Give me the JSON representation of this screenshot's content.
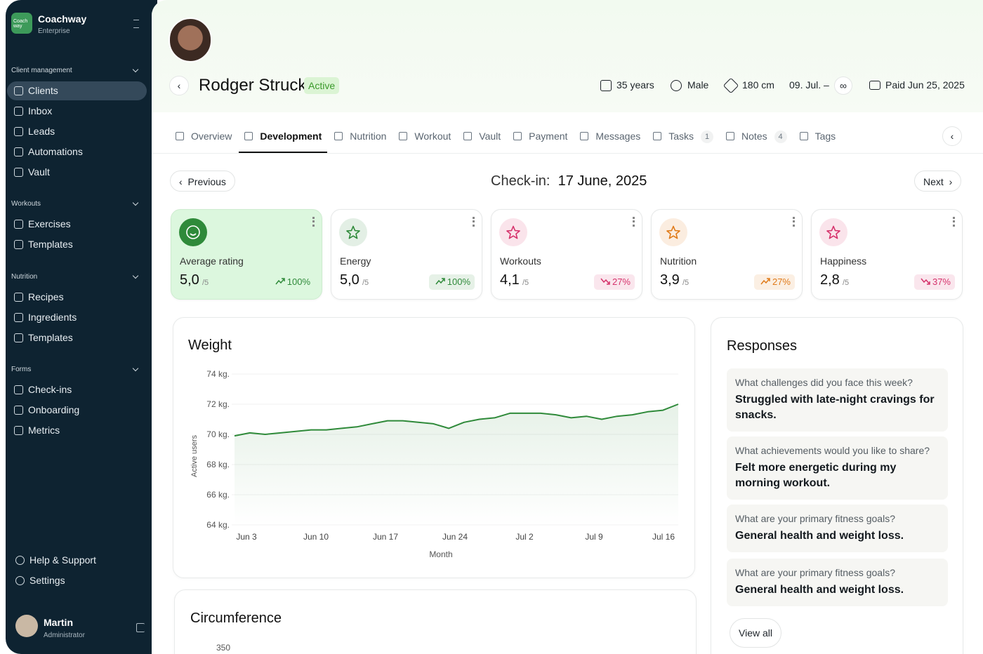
{
  "sidebar": {
    "brand": {
      "logo": "Coach way",
      "name": "Coachway",
      "subtitle": "Enterprise"
    },
    "sections": [
      {
        "title": "Client management",
        "items": [
          "Clients",
          "Inbox",
          "Leads",
          "Automations",
          "Vault"
        ]
      },
      {
        "title": "Workouts",
        "items": [
          "Exercises",
          "Templates"
        ]
      },
      {
        "title": "Nutrition",
        "items": [
          "Recipes",
          "Ingredients",
          "Templates"
        ]
      },
      {
        "title": "Forms",
        "items": [
          "Check-ins",
          "Onboarding",
          "Metrics"
        ]
      }
    ],
    "active": "Clients",
    "footer": [
      "Help & Support",
      "Settings"
    ],
    "user": {
      "name": "Martin",
      "role": "Administrator"
    }
  },
  "header": {
    "name": "Rodger Struck",
    "status": "Active",
    "age": "35 years",
    "gender": "Male",
    "height": "180 cm",
    "start": "09. Jul.",
    "dash": "–",
    "end": "∞",
    "paid": "Paid Jun 25, 2025"
  },
  "tabs": [
    {
      "label": "Overview"
    },
    {
      "label": "Development"
    },
    {
      "label": "Nutrition"
    },
    {
      "label": "Workout"
    },
    {
      "label": "Vault"
    },
    {
      "label": "Payment"
    },
    {
      "label": "Messages"
    },
    {
      "label": "Tasks",
      "badge": "1"
    },
    {
      "label": "Notes",
      "badge": "4"
    },
    {
      "label": "Tags"
    }
  ],
  "active_tab": "Development",
  "checkin": {
    "previous": "Previous",
    "label": "Check-in:",
    "date": "17 June, 2025",
    "next": "Next"
  },
  "cards": [
    {
      "label": "Average rating",
      "value": "5,0",
      "scale": "/5",
      "change": "100%",
      "trend": "up",
      "color": "#2f8a3a"
    },
    {
      "label": "Energy",
      "value": "5,0",
      "scale": "/5",
      "change": "100%",
      "trend": "up",
      "color": "#2f8a3a"
    },
    {
      "label": "Workouts",
      "value": "4,1",
      "scale": "/5",
      "change": "27%",
      "trend": "down",
      "color": "#d6336c"
    },
    {
      "label": "Nutrition",
      "value": "3,9",
      "scale": "/5",
      "change": "27%",
      "trend": "up",
      "color": "#e07b1a"
    },
    {
      "label": "Happiness",
      "value": "2,8",
      "scale": "/5",
      "change": "37%",
      "trend": "down",
      "color": "#d6336c"
    }
  ],
  "weight_chart": {
    "type": "line",
    "title": "Weight",
    "y_label": "Active users",
    "x_label": "Month",
    "color": "#2f8a3a",
    "values": [
      69.9,
      70.1,
      70.0,
      70.1,
      70.2,
      70.3,
      70.3,
      70.4,
      70.5,
      70.7,
      70.9,
      70.9,
      70.8,
      70.7,
      70.4,
      70.8,
      71.0,
      71.1,
      71.4,
      71.4,
      71.4,
      71.3,
      71.1,
      71.2,
      71.0,
      71.2,
      71.3,
      71.5,
      71.6,
      72.0
    ],
    "xticks": [
      "Jun 3",
      "Jun 10",
      "Jun 17",
      "Jun 24",
      "Jul 2",
      "Jul 9",
      "Jul 16"
    ],
    "ylim": [
      64,
      74
    ],
    "yticks": [
      {
        "value": 64,
        "label": "64 kg."
      },
      {
        "value": 66,
        "label": "66 kg."
      },
      {
        "value": 68,
        "label": "68 kg."
      },
      {
        "value": 70,
        "label": "70 kg."
      },
      {
        "value": 72,
        "label": "72 kg."
      },
      {
        "value": 74,
        "label": "74 kg."
      }
    ],
    "grid": true
  },
  "circumference": {
    "title": "Circumference",
    "first_tick": "350"
  },
  "responses": {
    "title": "Responses",
    "items": [
      {
        "question": "What challenges did you face this week?",
        "answer": "Struggled with late-night cravings for snacks."
      },
      {
        "question": "What achievements would you like to share?",
        "answer": "Felt more energetic during my morning workout."
      },
      {
        "question": "What are your primary fitness goals?",
        "answer": "General health and weight loss."
      },
      {
        "question": "What are your primary fitness goals?",
        "answer": "General health and weight loss."
      }
    ],
    "view_all": "View all"
  }
}
